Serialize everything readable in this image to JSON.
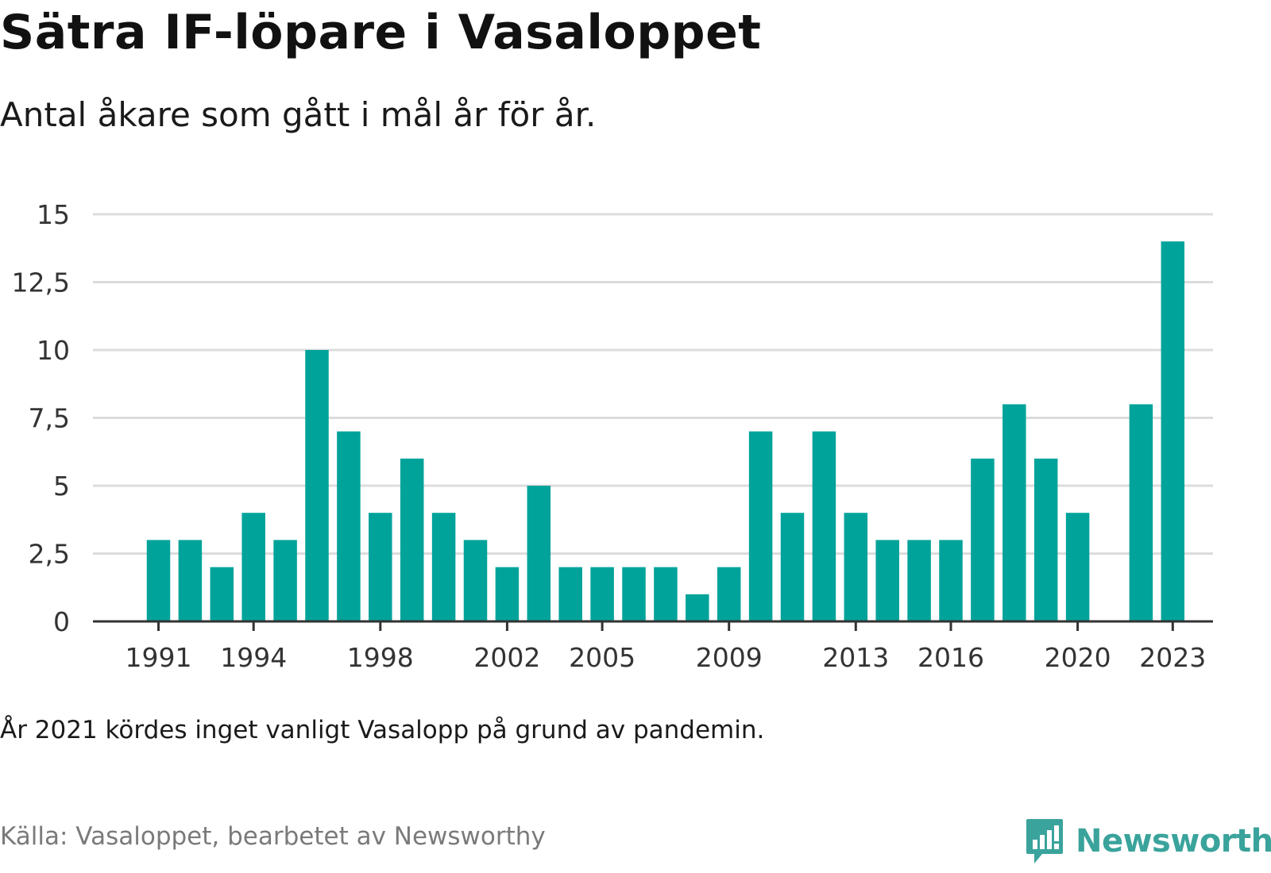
{
  "header": {
    "title": "Sätra IF-löpare i Vasaloppet",
    "subtitle": "Antal åkare som gått i mål år för år."
  },
  "footer": {
    "note": "År 2021 kördes inget vanligt Vasalopp på grund av pandemin.",
    "source": "Källa: Vasaloppet, bearbetet av Newsworthy",
    "brand": "Newsworthy",
    "brand_icon": "bar-chart-speech-icon",
    "brand_color": "#3aa39c"
  },
  "chart_data": {
    "type": "bar",
    "title": "Sätra IF-löpare i Vasaloppet",
    "subtitle": "Antal åkare som gått i mål år för år.",
    "xlabel": "",
    "ylabel": "",
    "bar_color": "#00a39a",
    "grid": true,
    "ylim": [
      0,
      15
    ],
    "y_ticks": [
      0,
      2.5,
      5,
      7.5,
      10,
      12.5,
      15
    ],
    "y_tick_labels": [
      "0",
      "2,5",
      "5",
      "7,5",
      "10",
      "12,5",
      "15"
    ],
    "x_tick_labels": [
      "1991",
      "1994",
      "1998",
      "2002",
      "2005",
      "2009",
      "2013",
      "2016",
      "2020",
      "2023"
    ],
    "categories": [
      1991,
      1992,
      1993,
      1994,
      1995,
      1996,
      1997,
      1998,
      1999,
      2000,
      2001,
      2002,
      2003,
      2004,
      2005,
      2006,
      2007,
      2008,
      2009,
      2010,
      2011,
      2012,
      2013,
      2014,
      2015,
      2016,
      2017,
      2018,
      2019,
      2020,
      2021,
      2022,
      2023
    ],
    "values": [
      3,
      3,
      2,
      4,
      3,
      10,
      7,
      4,
      6,
      4,
      3,
      2,
      5,
      2,
      2,
      2,
      2,
      1,
      2,
      7,
      4,
      7,
      4,
      3,
      3,
      3,
      6,
      8,
      6,
      4,
      0,
      8,
      14
    ]
  }
}
